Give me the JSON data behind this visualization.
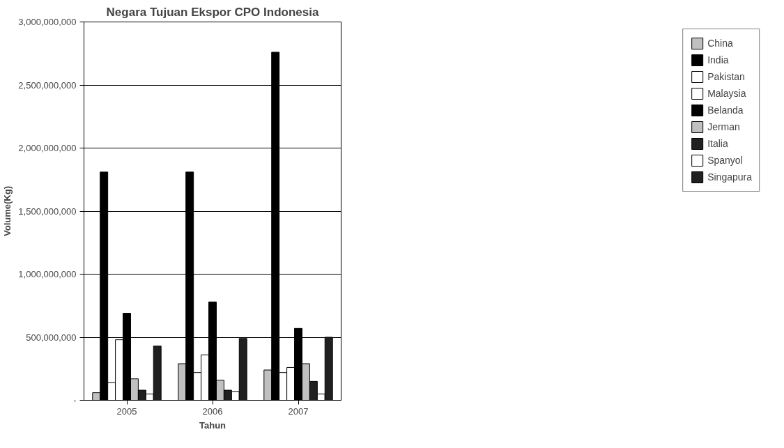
{
  "chart_data": {
    "type": "bar",
    "title": "Negara Tujuan Ekspor CPO Indonesia",
    "xlabel": "Tahun",
    "ylabel": "Volume(Kg)",
    "categories": [
      "2005",
      "2006",
      "2007"
    ],
    "series": [
      {
        "name": "China",
        "color": "#c0c0c0",
        "values": [
          60000000,
          290000000,
          240000000
        ]
      },
      {
        "name": "India",
        "color": "#000000",
        "values": [
          1810000000,
          1810000000,
          2760000000
        ]
      },
      {
        "name": "Pakistan",
        "color": "#ffffff",
        "values": [
          140000000,
          220000000,
          220000000
        ]
      },
      {
        "name": "Malaysia",
        "color": "#ffffff",
        "values": [
          480000000,
          360000000,
          260000000
        ]
      },
      {
        "name": "Belanda",
        "color": "#000000",
        "values": [
          690000000,
          780000000,
          570000000
        ]
      },
      {
        "name": "Jerman",
        "color": "#c0c0c0",
        "values": [
          170000000,
          160000000,
          290000000
        ]
      },
      {
        "name": "Italia",
        "color": "#202020",
        "values": [
          80000000,
          80000000,
          150000000
        ]
      },
      {
        "name": "Spanyol",
        "color": "#ffffff",
        "values": [
          50000000,
          70000000,
          50000000
        ]
      },
      {
        "name": "Singapura",
        "color": "#202020",
        "values": [
          430000000,
          490000000,
          500000000
        ]
      }
    ],
    "ylim": [
      0,
      3000000000
    ],
    "yticks": [
      {
        "value": 0,
        "label": "-"
      },
      {
        "value": 500000000,
        "label": "500,000,000"
      },
      {
        "value": 1000000000,
        "label": "1,000,000,000"
      },
      {
        "value": 1500000000,
        "label": "1,500,000,000"
      },
      {
        "value": 2000000000,
        "label": "2,000,000,000"
      },
      {
        "value": 2500000000,
        "label": "2,500,000,000"
      },
      {
        "value": 3000000000,
        "label": "3,000,000,000"
      }
    ],
    "grid": "y",
    "legend": "right"
  }
}
